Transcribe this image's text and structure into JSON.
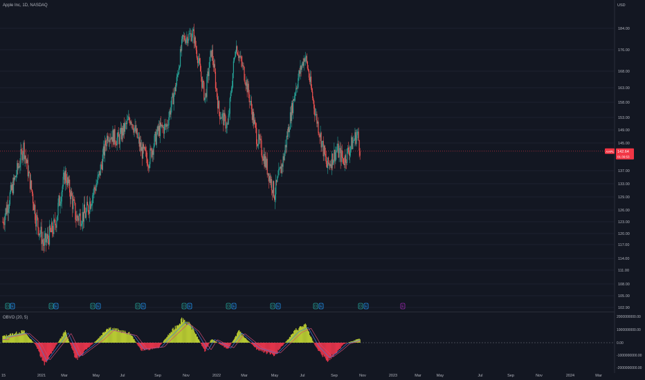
{
  "header": {
    "title": "Apple Inc, 1D, NASDAQ",
    "currency": "USD"
  },
  "oscillator": {
    "title": "OBVO (20, 5)"
  },
  "price_axis": {
    "labels": [
      "184.00",
      "176.00",
      "168.00",
      "163.00",
      "158.00",
      "153.00",
      "149.00",
      "145.00",
      "137.00",
      "133.00",
      "129.00",
      "126.00",
      "123.00",
      "120.00",
      "117.00",
      "114.00",
      "111.00",
      "108.00",
      "105.00",
      "102.90"
    ]
  },
  "osc_axis": {
    "labels": [
      "2000000000.00",
      "1000000000.00",
      "0.00",
      "-1000000000.00",
      "-2000000000.00"
    ]
  },
  "time_axis": {
    "labels": [
      "15",
      "2021",
      "Mar",
      "May",
      "Jul",
      "Sep",
      "Nov",
      "2022",
      "Mar",
      "May",
      "Jul",
      "Sep",
      "Nov",
      "2023",
      "Mar",
      "May",
      "Jul",
      "Sep",
      "Nov",
      "2024",
      "Mar"
    ]
  },
  "last_price": {
    "symbol": "AAPL",
    "price": "142.64",
    "countdown": "01:36:53"
  },
  "colors": {
    "background": "#131722",
    "up": "#26a69a",
    "down": "#ef5350",
    "histogram_up": "#b6c832",
    "histogram_down": "#e0344a",
    "line_blue": "#4a7bd9",
    "line_pink": "#d04a76",
    "price_label": "#f23645",
    "event_icon": "#2196f3",
    "event_icon_alt": "#9c27b0"
  },
  "events": {
    "icons": [
      "dividends-icon",
      "earnings-icon",
      "dividends-icon",
      "earnings-icon",
      "dividends-icon",
      "earnings-icon",
      "dividends-icon",
      "earnings-icon",
      "dividends-icon",
      "earnings-icon",
      "dividends-icon",
      "earnings-icon",
      "dividends-icon",
      "earnings-icon",
      "dividends-icon",
      "earnings-icon",
      "dividends-icon",
      "earnings-icon",
      "earnings-upcoming-icon"
    ]
  },
  "chart_data": {
    "type": "candlestick",
    "title": "Apple Inc, 1D, NASDAQ",
    "x_range": [
      "2020-12-15",
      "2024-03-31"
    ],
    "y_range": [
      102.9,
      186
    ],
    "last_price": 142.64,
    "price_path": [
      [
        "2020-12-15",
        123
      ],
      [
        "2021-01-04",
        132
      ],
      [
        "2021-01-26",
        144
      ],
      [
        "2021-02-20",
        124
      ],
      [
        "2021-03-08",
        117
      ],
      [
        "2021-03-30",
        122
      ],
      [
        "2021-04-20",
        136
      ],
      [
        "2021-05-12",
        124
      ],
      [
        "2021-06-01",
        125
      ],
      [
        "2021-06-25",
        134
      ],
      [
        "2021-07-15",
        148
      ],
      [
        "2021-08-05",
        146
      ],
      [
        "2021-08-30",
        153
      ],
      [
        "2021-09-20",
        143
      ],
      [
        "2021-10-05",
        140
      ],
      [
        "2021-10-25",
        149
      ],
      [
        "2021-11-10",
        150
      ],
      [
        "2021-12-01",
        165
      ],
      [
        "2021-12-13",
        180
      ],
      [
        "2022-01-03",
        182
      ],
      [
        "2022-01-27",
        159
      ],
      [
        "2022-02-09",
        176
      ],
      [
        "2022-02-24",
        155
      ],
      [
        "2022-03-14",
        150
      ],
      [
        "2022-03-30",
        178
      ],
      [
        "2022-04-20",
        165
      ],
      [
        "2022-05-11",
        147
      ],
      [
        "2022-05-26",
        141
      ],
      [
        "2022-06-16",
        130
      ],
      [
        "2022-07-05",
        141
      ],
      [
        "2022-07-29",
        163
      ],
      [
        "2022-08-17",
        174
      ],
      [
        "2022-09-07",
        154
      ],
      [
        "2022-09-30",
        138
      ],
      [
        "2022-10-20",
        143
      ],
      [
        "2022-11-03",
        140
      ],
      [
        "2022-11-30",
        148
      ],
      [
        "2022-12-07",
        142.64
      ]
    ],
    "oscillator": {
      "name": "OBVO (20, 5)",
      "y_range": [
        -2000000000,
        2000000000
      ],
      "path": [
        [
          "2020-12-15",
          500000000
        ],
        [
          "2021-01-26",
          900000000
        ],
        [
          "2021-02-20",
          -200000000
        ],
        [
          "2021-03-08",
          -1700000000
        ],
        [
          "2021-04-20",
          900000000
        ],
        [
          "2021-05-12",
          -1300000000
        ],
        [
          "2021-06-25",
          300000000
        ],
        [
          "2021-07-15",
          1200000000
        ],
        [
          "2021-08-30",
          700000000
        ],
        [
          "2021-09-20",
          -600000000
        ],
        [
          "2021-10-25",
          -400000000
        ],
        [
          "2021-11-10",
          400000000
        ],
        [
          "2021-12-13",
          1900000000
        ],
        [
          "2022-01-03",
          1100000000
        ],
        [
          "2022-01-27",
          -700000000
        ],
        [
          "2022-02-09",
          300000000
        ],
        [
          "2022-03-14",
          -500000000
        ],
        [
          "2022-04-05",
          900000000
        ],
        [
          "2022-05-11",
          -500000000
        ],
        [
          "2022-06-16",
          -1000000000
        ],
        [
          "2022-07-29",
          1000000000
        ],
        [
          "2022-08-17",
          1400000000
        ],
        [
          "2022-09-07",
          -300000000
        ],
        [
          "2022-09-30",
          -1400000000
        ],
        [
          "2022-10-20",
          -700000000
        ],
        [
          "2022-11-03",
          -100000000
        ],
        [
          "2022-11-30",
          250000000
        ],
        [
          "2022-12-07",
          300000000
        ]
      ]
    }
  }
}
